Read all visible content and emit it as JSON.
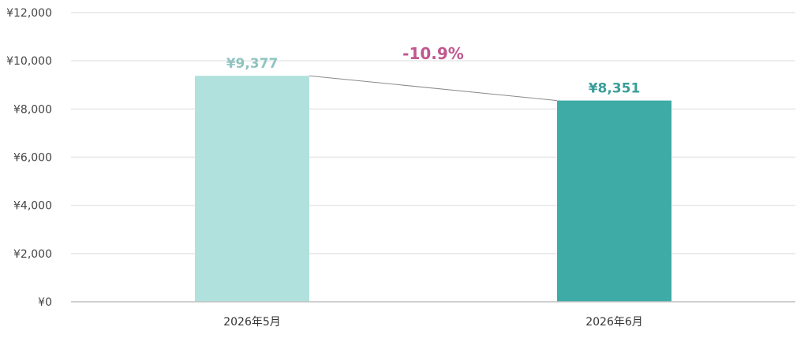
{
  "chart_data": {
    "type": "bar",
    "categories": [
      "2026年5月",
      "2026年6月"
    ],
    "values": [
      9377,
      8351
    ],
    "value_labels": [
      "¥9,377",
      "¥8,351"
    ],
    "ylim": [
      0,
      12000
    ],
    "yticks": [
      0,
      2000,
      4000,
      6000,
      8000,
      10000,
      12000
    ],
    "ytick_labels": [
      "¥0",
      "¥2,000",
      "¥4,000",
      "¥6,000",
      "¥8,000",
      "¥10,000",
      "¥12,000"
    ],
    "grid": true,
    "annotations": [
      {
        "text": "-10.9%",
        "type": "change",
        "from": 0,
        "to": 1
      }
    ],
    "colors": {
      "bars": [
        "#b0e1dd",
        "#3eaba6"
      ],
      "value_labels": [
        "#8fc4c0",
        "#3a9e99"
      ],
      "change_label": "#c0588e",
      "connector": "#8a8a8a",
      "grid": "#e6e6e6",
      "axis": "#bfbfbf"
    }
  }
}
